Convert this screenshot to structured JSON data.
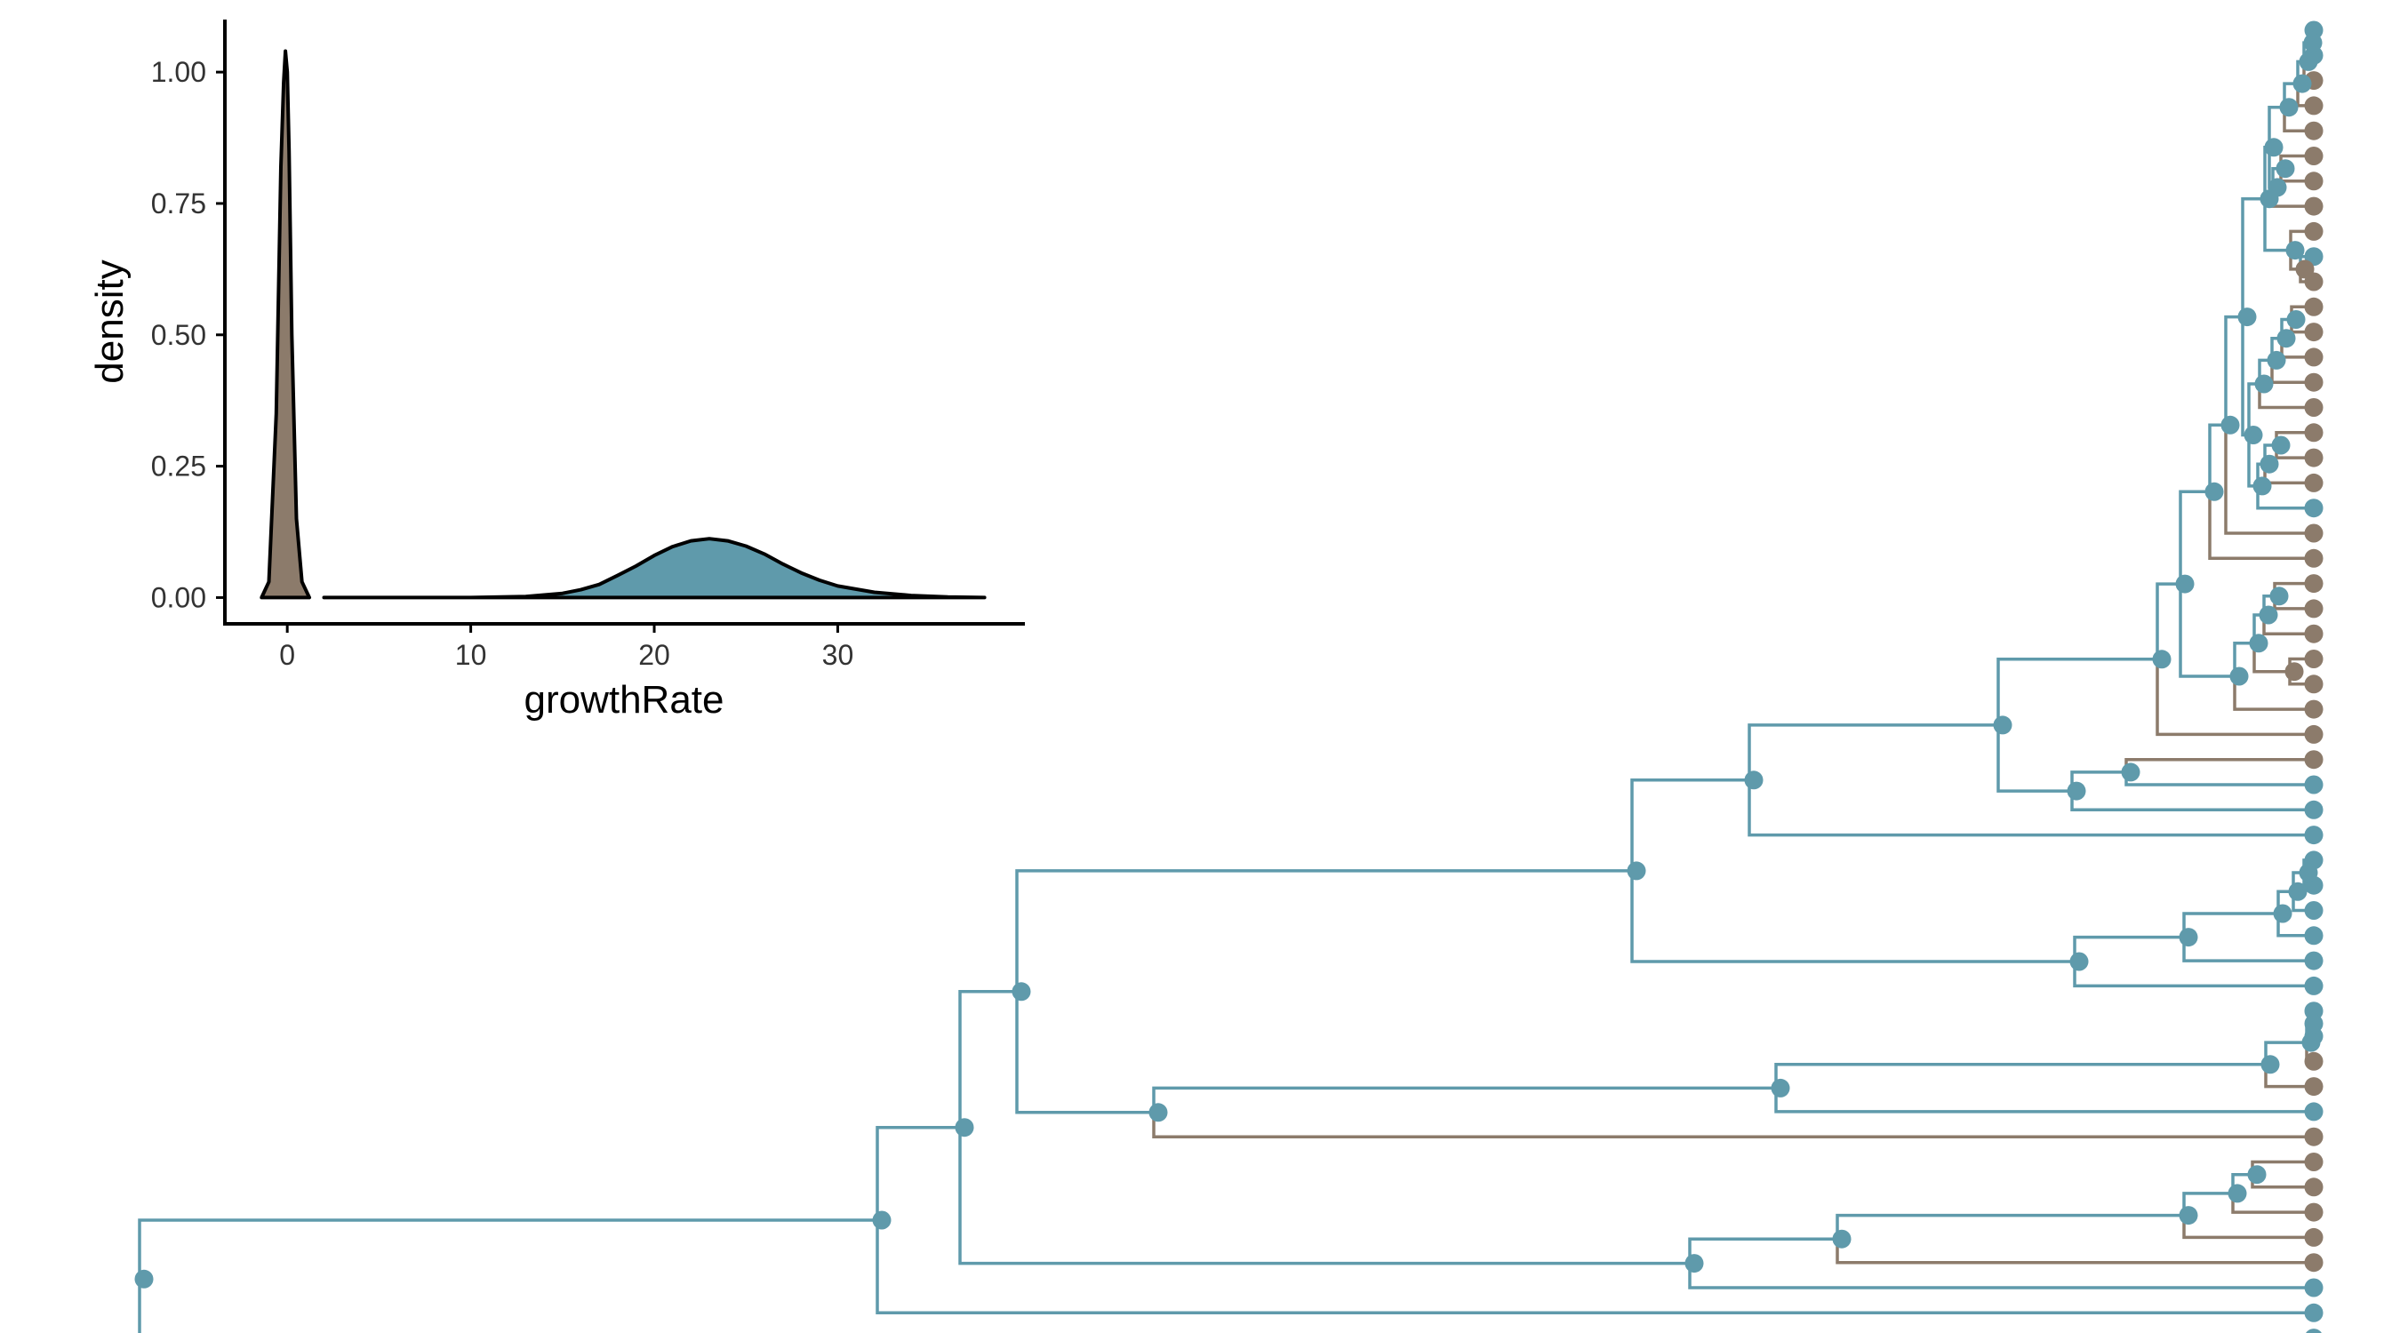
{
  "colors": {
    "blue": "#5f9aab",
    "brown": "#8c7b6b",
    "axis": "#000000",
    "text": "#333333",
    "background": "#ffffff"
  },
  "chart_data": {
    "type": "area",
    "xlabel": "growthRate",
    "ylabel": "density",
    "xlim": [
      -2,
      38
    ],
    "ylim": [
      0,
      1.1
    ],
    "x_ticks": [
      0,
      10,
      20,
      30
    ],
    "y_ticks": [
      0.0,
      0.25,
      0.5,
      0.75,
      1.0
    ],
    "x_tick_labels": [
      "0",
      "10",
      "20",
      "30"
    ],
    "y_tick_labels": [
      "0.00",
      "0.25",
      "0.50",
      "0.75",
      "1.00"
    ],
    "grid": false,
    "series": [
      {
        "color": "brown",
        "x": [
          -1.4,
          -1.0,
          -0.6,
          -0.35,
          -0.2,
          -0.1,
          0.0,
          0.1,
          0.25,
          0.5,
          0.8,
          1.2
        ],
        "y": [
          0.0,
          0.03,
          0.35,
          0.82,
          0.98,
          1.04,
          1.0,
          0.85,
          0.5,
          0.15,
          0.03,
          0.0
        ]
      },
      {
        "color": "blue",
        "x": [
          2,
          10,
          13,
          15,
          16,
          17,
          18,
          19,
          20,
          21,
          22,
          23,
          24,
          25,
          26,
          27,
          28,
          29,
          30,
          32,
          34,
          36,
          38
        ],
        "y": [
          0.0,
          0.0,
          0.002,
          0.008,
          0.015,
          0.025,
          0.042,
          0.06,
          0.08,
          0.097,
          0.108,
          0.112,
          0.108,
          0.098,
          0.083,
          0.064,
          0.047,
          0.033,
          0.022,
          0.01,
          0.004,
          0.001,
          0.0
        ]
      }
    ]
  },
  "tree": {
    "tip_colors": [
      "blue",
      "blue",
      "brown",
      "brown",
      "brown",
      "brown",
      "brown",
      "brown",
      "brown",
      "blue",
      "brown",
      "brown",
      "brown",
      "brown",
      "brown",
      "brown",
      "brown",
      "brown",
      "brown",
      "blue",
      "brown",
      "brown",
      "brown",
      "brown",
      "brown",
      "brown",
      "brown",
      "brown",
      "brown",
      "brown",
      "blue",
      "blue",
      "blue",
      "blue",
      "blue",
      "blue",
      "blue",
      "blue",
      "blue",
      "blue",
      "blue",
      "brown",
      "brown",
      "blue",
      "brown",
      "brown",
      "brown",
      "brown",
      "brown",
      "brown",
      "blue",
      "blue"
    ]
  }
}
